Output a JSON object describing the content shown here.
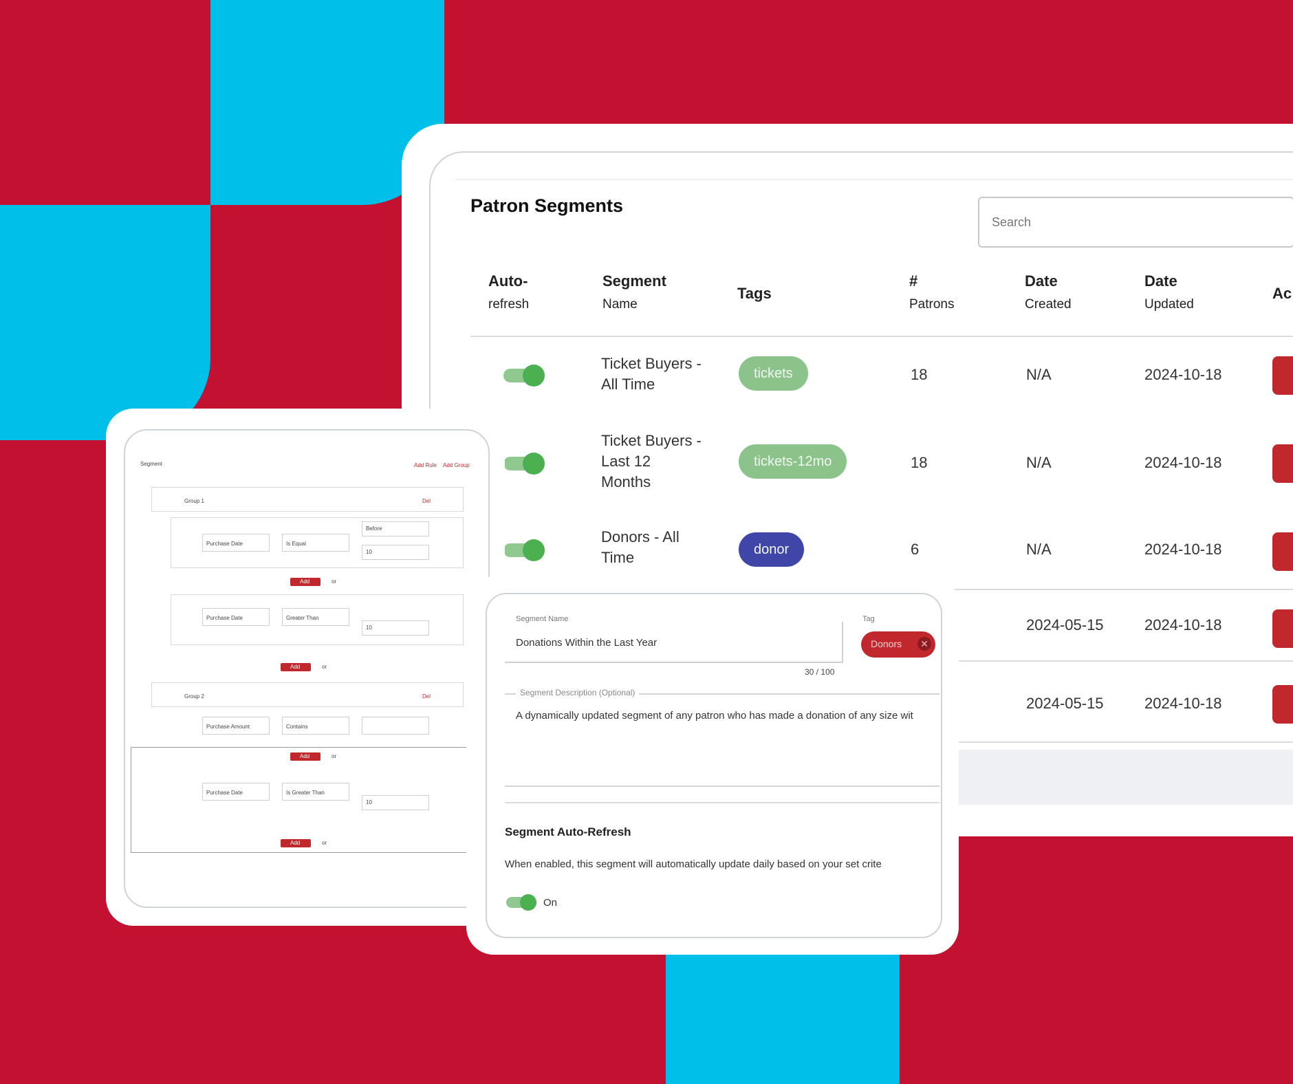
{
  "colors": {
    "background": "#c21131",
    "accent_blue": "#00bfe8",
    "toggle_on": "#4caf50",
    "tag_green": "#8bc38a",
    "tag_purple": "#3f46a8",
    "action_red": "#c0282e"
  },
  "segments_panel": {
    "title": "Patron Segments",
    "search_placeholder": "Search",
    "columns": [
      {
        "line1": "Auto-",
        "line2": "refresh"
      },
      {
        "line1": "Segment",
        "line2": "Name"
      },
      {
        "line1": "Tags",
        "line2": ""
      },
      {
        "line1": "#",
        "line2": "Patrons"
      },
      {
        "line1": "Date",
        "line2": "Created"
      },
      {
        "line1": "Date",
        "line2": "Updated"
      },
      {
        "line1": "Ac",
        "line2": ""
      }
    ],
    "rows": [
      {
        "auto_refresh": true,
        "name": [
          "Ticket Buyers -",
          "All Time"
        ],
        "tag": "tickets",
        "patrons": "18",
        "created": "N/A",
        "updated": "2024-10-18"
      },
      {
        "auto_refresh": true,
        "name": [
          "Ticket Buyers -",
          "Last 12",
          "Months"
        ],
        "tag": "tickets-12mo",
        "patrons": "18",
        "created": "N/A",
        "updated": "2024-10-18"
      },
      {
        "auto_refresh": true,
        "name": [
          "Donors - All",
          "Time"
        ],
        "tag": "donor",
        "patrons": "6",
        "created": "N/A",
        "updated": "2024-10-18"
      },
      {
        "auto_refresh": true,
        "name": [],
        "tag": "",
        "patrons": "",
        "created": "2024-05-15",
        "updated": "2024-10-18"
      },
      {
        "auto_refresh": true,
        "name": [],
        "tag": "",
        "patrons": "",
        "created": "2024-05-15",
        "updated": "2024-10-18"
      }
    ]
  },
  "builder_panel": {
    "title": "Segment",
    "link_add_rule": "Add Rule",
    "link_add_group": "Add Group",
    "group1_label": "Group 1",
    "group2_label": "Group 2",
    "remove_label": "Del",
    "rule_field_1": "Purchase Date",
    "rule_field_2": "Is Equal",
    "rule_field_3": "Before",
    "rule_value": "10",
    "add_label": "Add",
    "or_label": "or",
    "rule_field_alt": "Purchase Amount",
    "rule_field_alt2": "Greater Than",
    "rule_field_alt3": "Is Greater Than",
    "rule_field_alt4": "Contains"
  },
  "edit_panel": {
    "segment_name_label": "Segment Name",
    "segment_name_value": "Donations Within the Last Year",
    "char_count": "30 / 100",
    "tag_label": "Tag",
    "tag_value": "Donors",
    "description_label": "Segment Description (Optional)",
    "description_value": "A dynamically updated segment of any patron who has made a donation of any size wit",
    "auto_refresh_title": "Segment Auto-Refresh",
    "auto_refresh_text": "When enabled, this segment will automatically update daily based on your set crite",
    "toggle_label": "On"
  }
}
